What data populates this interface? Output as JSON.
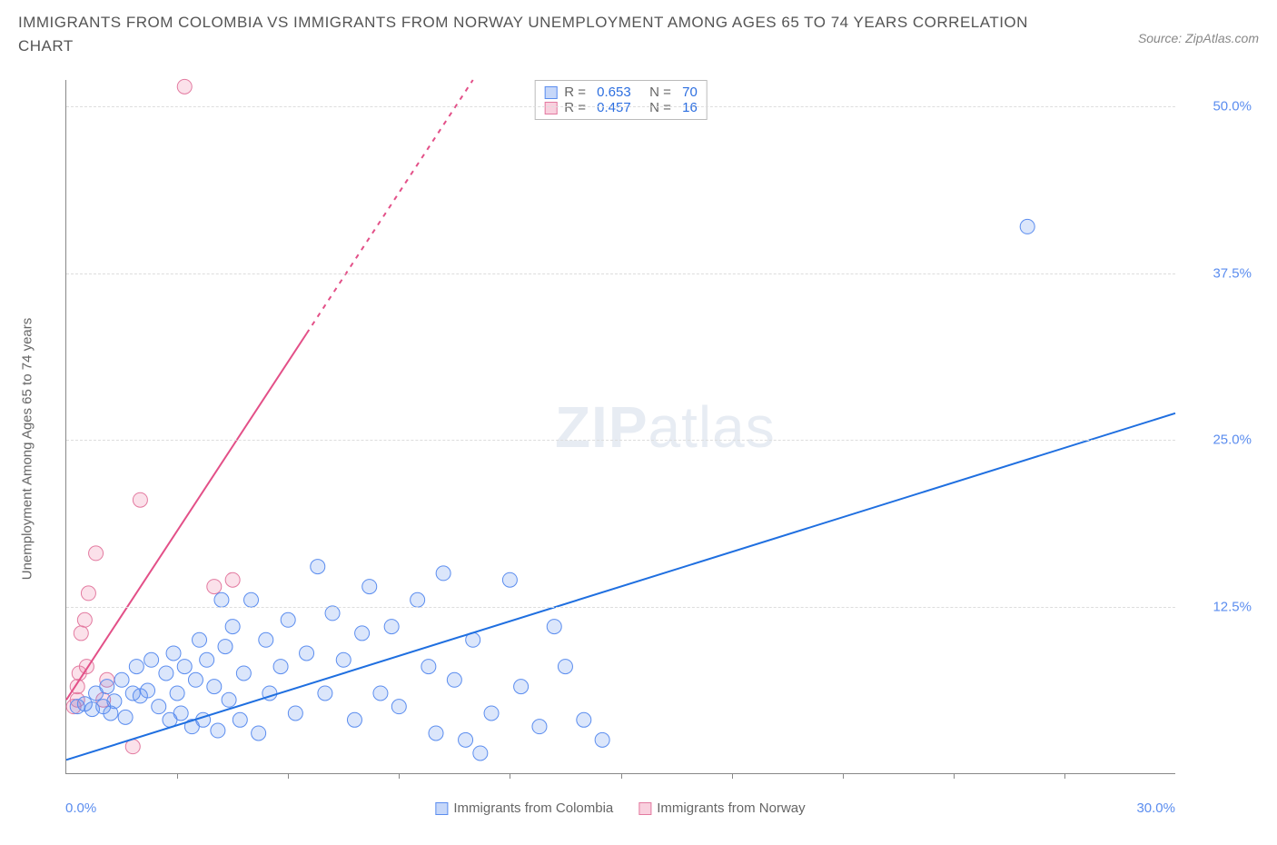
{
  "header": {
    "title": "IMMIGRANTS FROM COLOMBIA VS IMMIGRANTS FROM NORWAY UNEMPLOYMENT AMONG AGES 65 TO 74 YEARS CORRELATION CHART",
    "source": "Source: ZipAtlas.com"
  },
  "axes": {
    "y_label": "Unemployment Among Ages 65 to 74 years",
    "x_min_label": "0.0%",
    "x_max_label": "30.0%",
    "x_min": 0.0,
    "x_max": 30.0,
    "y_min": 0.0,
    "y_max": 52.0,
    "y_ticks": [
      {
        "v": 12.5,
        "label": "12.5%"
      },
      {
        "v": 25.0,
        "label": "25.0%"
      },
      {
        "v": 37.5,
        "label": "37.5%"
      },
      {
        "v": 50.0,
        "label": "50.0%"
      }
    ],
    "x_tick_step": 3.0
  },
  "watermark": {
    "zip": "ZIP",
    "atlas": "atlas"
  },
  "series": {
    "colombia": {
      "label": "Immigrants from Colombia",
      "fill": "rgba(93,141,239,0.22)",
      "stroke": "#5b8def",
      "swatch_fill": "rgba(93,141,239,0.35)",
      "swatch_border": "#5b8def",
      "marker_r": 8,
      "line_color": "#1f6fe0",
      "line_width": 2,
      "trend": {
        "x1": 0.0,
        "y1": 1.0,
        "x2": 30.0,
        "y2": 27.0,
        "dash_start_x": 15.0
      },
      "R": "0.653",
      "N": "70",
      "points": [
        [
          0.3,
          5.0
        ],
        [
          0.5,
          5.2
        ],
        [
          0.7,
          4.8
        ],
        [
          0.8,
          6.0
        ],
        [
          1.0,
          5.0
        ],
        [
          1.1,
          6.5
        ],
        [
          1.2,
          4.5
        ],
        [
          1.3,
          5.4
        ],
        [
          1.5,
          7.0
        ],
        [
          1.6,
          4.2
        ],
        [
          1.8,
          6.0
        ],
        [
          1.9,
          8.0
        ],
        [
          2.0,
          5.8
        ],
        [
          2.2,
          6.2
        ],
        [
          2.3,
          8.5
        ],
        [
          2.5,
          5.0
        ],
        [
          2.7,
          7.5
        ],
        [
          2.8,
          4.0
        ],
        [
          2.9,
          9.0
        ],
        [
          3.0,
          6.0
        ],
        [
          3.1,
          4.5
        ],
        [
          3.2,
          8.0
        ],
        [
          3.4,
          3.5
        ],
        [
          3.5,
          7.0
        ],
        [
          3.6,
          10.0
        ],
        [
          3.7,
          4.0
        ],
        [
          3.8,
          8.5
        ],
        [
          4.0,
          6.5
        ],
        [
          4.1,
          3.2
        ],
        [
          4.3,
          9.5
        ],
        [
          4.4,
          5.5
        ],
        [
          4.5,
          11.0
        ],
        [
          4.7,
          4.0
        ],
        [
          4.8,
          7.5
        ],
        [
          5.0,
          13.0
        ],
        [
          5.2,
          3.0
        ],
        [
          5.4,
          10.0
        ],
        [
          5.5,
          6.0
        ],
        [
          5.8,
          8.0
        ],
        [
          6.0,
          11.5
        ],
        [
          6.2,
          4.5
        ],
        [
          6.5,
          9.0
        ],
        [
          6.8,
          15.5
        ],
        [
          7.0,
          6.0
        ],
        [
          7.2,
          12.0
        ],
        [
          7.5,
          8.5
        ],
        [
          7.8,
          4.0
        ],
        [
          8.0,
          10.5
        ],
        [
          8.2,
          14.0
        ],
        [
          8.5,
          6.0
        ],
        [
          8.8,
          11.0
        ],
        [
          9.0,
          5.0
        ],
        [
          9.5,
          13.0
        ],
        [
          9.8,
          8.0
        ],
        [
          10.0,
          3.0
        ],
        [
          10.2,
          15.0
        ],
        [
          10.5,
          7.0
        ],
        [
          10.8,
          2.5
        ],
        [
          11.0,
          10.0
        ],
        [
          11.5,
          4.5
        ],
        [
          12.0,
          14.5
        ],
        [
          12.3,
          6.5
        ],
        [
          12.8,
          3.5
        ],
        [
          13.2,
          11.0
        ],
        [
          13.5,
          8.0
        ],
        [
          14.0,
          4.0
        ],
        [
          14.5,
          2.5
        ],
        [
          11.2,
          1.5
        ],
        [
          26.0,
          41.0
        ],
        [
          4.2,
          13.0
        ]
      ]
    },
    "norway": {
      "label": "Immigrants from Norway",
      "fill": "rgba(239,120,160,0.22)",
      "stroke": "#e37aa0",
      "swatch_fill": "rgba(239,120,160,0.35)",
      "swatch_border": "#e37aa0",
      "marker_r": 8,
      "line_color": "#e35088",
      "line_width": 2,
      "trend": {
        "x1": 0.0,
        "y1": 5.5,
        "x2": 11.0,
        "y2": 52.0,
        "solid_until_x": 6.5
      },
      "R": "0.457",
      "N": "16",
      "points": [
        [
          0.2,
          5.0
        ],
        [
          0.3,
          6.5
        ],
        [
          0.3,
          5.5
        ],
        [
          0.35,
          7.5
        ],
        [
          0.4,
          10.5
        ],
        [
          0.5,
          11.5
        ],
        [
          0.55,
          8.0
        ],
        [
          0.6,
          13.5
        ],
        [
          0.8,
          16.5
        ],
        [
          1.0,
          5.5
        ],
        [
          1.1,
          7.0
        ],
        [
          1.8,
          2.0
        ],
        [
          2.0,
          20.5
        ],
        [
          3.2,
          51.5
        ],
        [
          4.0,
          14.0
        ],
        [
          4.5,
          14.5
        ]
      ]
    }
  },
  "stats_legend": {
    "rows": [
      {
        "swatch": "colombia",
        "R_label": "R = ",
        "R": "0.653",
        "N_label": "   N = ",
        "N": "70"
      },
      {
        "swatch": "norway",
        "R_label": "R = ",
        "R": "0.457",
        "N_label": "   N = ",
        "N": "16"
      }
    ]
  },
  "colors": {
    "grid": "#dddddd",
    "axis": "#888888",
    "text_muted": "#666666",
    "value": "#2d6fe0",
    "tick_label": "#5b8def"
  }
}
